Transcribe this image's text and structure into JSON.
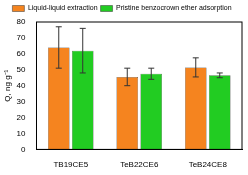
{
  "chart_data": {
    "type": "bar",
    "y_label": "Q, ng g⁻¹",
    "categories": [
      "TB19CE5",
      "TeB22CE6",
      "TeB24CE8"
    ],
    "series": [
      {
        "name": "Liquid-liquid extraction",
        "color": "#f5841f",
        "values": [
          64,
          45.5,
          51.5
        ],
        "errors": [
          13,
          5.5,
          6
        ]
      },
      {
        "name": "Pristine benzocrown ether adsorption",
        "color": "#22cc22",
        "values": [
          62,
          47.5,
          46.5
        ],
        "errors": [
          14,
          3.5,
          1.5
        ]
      }
    ],
    "ylim": [
      0,
      80
    ],
    "yticks": [
      0,
      10,
      20,
      30,
      40,
      50,
      60,
      70,
      80
    ],
    "grid": false,
    "legend": "top"
  }
}
